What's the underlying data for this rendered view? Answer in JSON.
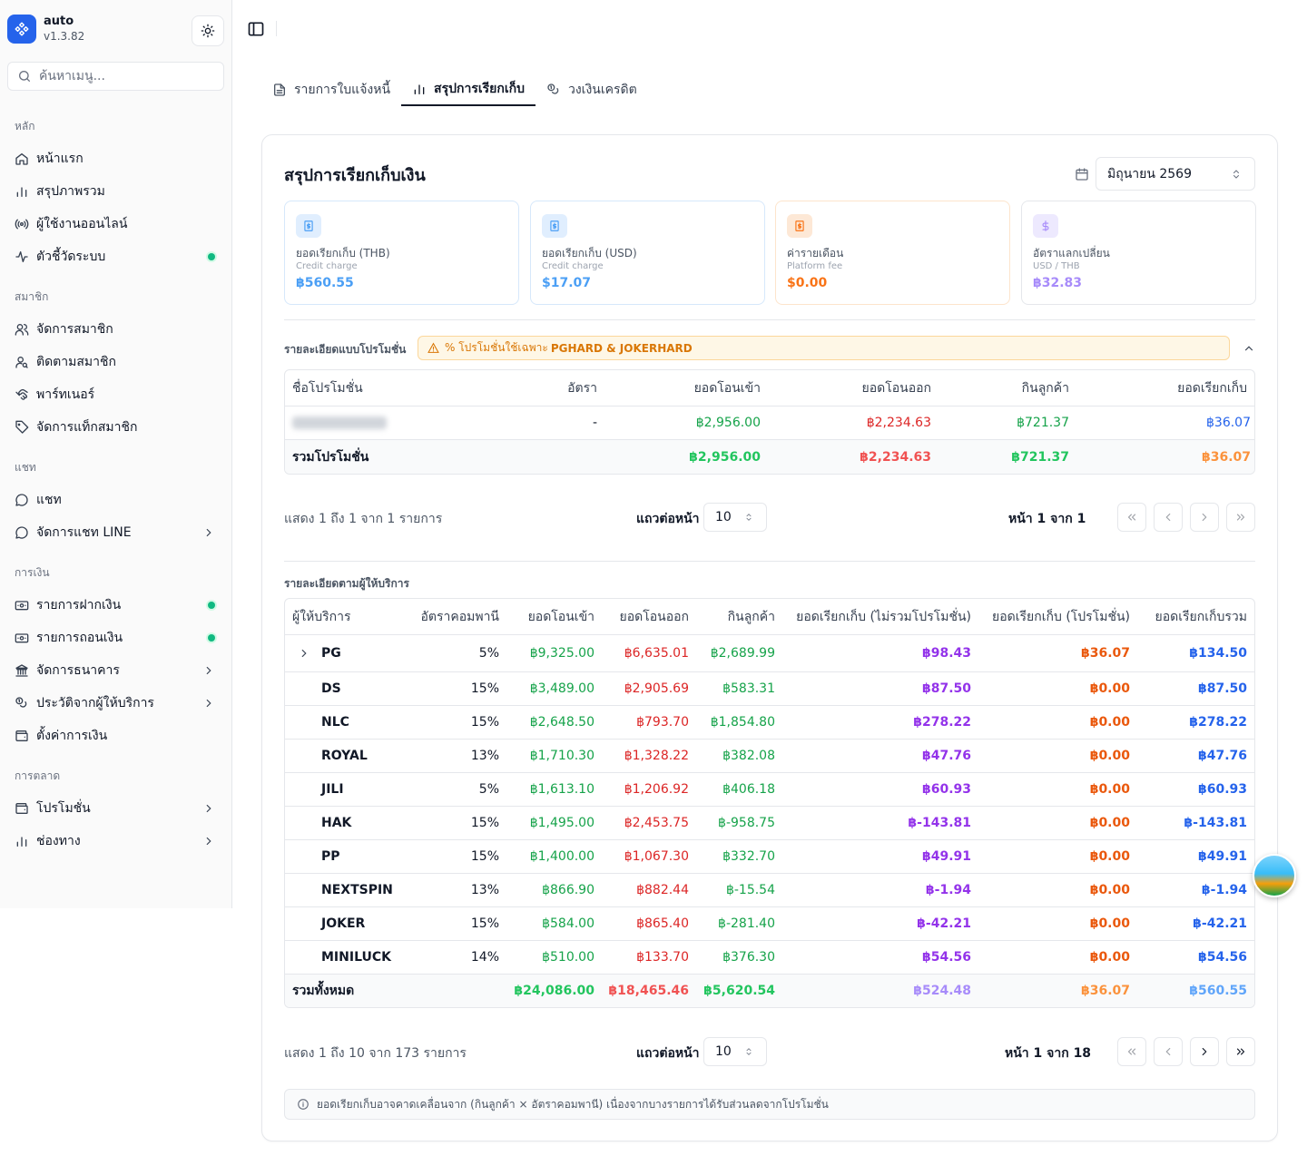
{
  "app": {
    "name": "auto",
    "version": "v1.3.82"
  },
  "search": {
    "placeholder": "ค้นหาเมนู..."
  },
  "sidebar": {
    "groups": [
      {
        "label": "หลัก",
        "items": [
          {
            "label": "หน้าแรก",
            "icon": "home-icon"
          },
          {
            "label": "สรุปภาพรวม",
            "icon": "bar-chart-icon"
          },
          {
            "label": "ผู้ใช้งานออนไลน์",
            "icon": "radio-icon"
          },
          {
            "label": "ตัวชี้วัดระบบ",
            "icon": "activity-icon",
            "dot": true
          }
        ]
      },
      {
        "label": "สมาชิก",
        "items": [
          {
            "label": "จัดการสมาชิก",
            "icon": "users-icon"
          },
          {
            "label": "ติดตามสมาชิก",
            "icon": "user-search-icon"
          },
          {
            "label": "พาร์ทเนอร์",
            "icon": "handshake-icon"
          },
          {
            "label": "จัดการแท็กสมาชิก",
            "icon": "tag-icon"
          }
        ]
      },
      {
        "label": "แชท",
        "items": [
          {
            "label": "แชท",
            "icon": "chat-icon"
          },
          {
            "label": "จัดการแชท LINE",
            "icon": "chat-icon",
            "chevron": true
          }
        ]
      },
      {
        "label": "การเงิน",
        "items": [
          {
            "label": "รายการฝากเงิน",
            "icon": "deposit-icon",
            "dot": true
          },
          {
            "label": "รายการถอนเงิน",
            "icon": "withdraw-icon",
            "dot": true
          },
          {
            "label": "จัดการธนาคาร",
            "icon": "bank-icon",
            "chevron": true
          },
          {
            "label": "ประวัติจากผู้ให้บริการ",
            "icon": "coins-icon",
            "chevron": true
          },
          {
            "label": "ตั้งค่าการเงิน",
            "icon": "wallet-icon"
          }
        ]
      },
      {
        "label": "การตลาด",
        "items": [
          {
            "label": "โปรโมชั่น",
            "icon": "wallet-icon",
            "chevron": true
          },
          {
            "label": "ช่องทาง",
            "icon": "bar-chart-icon",
            "chevron": true
          }
        ]
      }
    ]
  },
  "tabs": [
    {
      "label": "รายการใบแจ้งหนี้",
      "icon": "document-icon",
      "active": false
    },
    {
      "label": "สรุปการเรียกเก็บ",
      "icon": "bar-chart-icon",
      "active": true
    },
    {
      "label": "วงเงินเครดิต",
      "icon": "coins-icon",
      "active": false
    }
  ],
  "summary": {
    "title": "สรุปการเรียกเก็บเงิน",
    "month": "มิถุนายน 2569",
    "stats": [
      {
        "label": "ยอดเรียกเก็บ (THB)",
        "sub": "Credit charge",
        "value": "฿560.55",
        "color": "#4b9ff5",
        "border": "#d6e8fb",
        "icon_bg": "#e0eefe",
        "icon": "receipt-icon"
      },
      {
        "label": "ยอดเรียกเก็บ (USD)",
        "sub": "Credit charge",
        "value": "$17.07",
        "color": "#4b9ff5",
        "border": "#d6e8fb",
        "icon_bg": "#e0eefe",
        "icon": "receipt-icon"
      },
      {
        "label": "ค่ารายเดือน",
        "sub": "Platform fee",
        "value": "$0.00",
        "color": "#f97316",
        "border": "#fde4cc",
        "icon_bg": "#fde8d6",
        "icon": "receipt-icon"
      },
      {
        "label": "อัตราแลกเปลี่ยน",
        "sub": "USD / THB",
        "value": "฿32.83",
        "color": "#a78bfa",
        "border": "#e5e7eb",
        "icon_bg": "#ede9fe",
        "icon": "dollar-icon"
      }
    ]
  },
  "promo": {
    "label": "รายละเอียดแบบโปรโมชั่น",
    "warning_prefix": "% โปรโมชั่นใช้เฉพาะ ",
    "warning_bold": "PGHARD & JOKERHARD",
    "columns": [
      "ชื่อโปรโมชั่น",
      "อัตรา",
      "ยอดโอนเข้า",
      "ยอดโอนออก",
      "กินลูกค้า",
      "ยอดเรียกเก็บ"
    ],
    "rows": [
      {
        "name": "",
        "rate": "-",
        "in": "฿2,956.00",
        "out": "฿2,234.63",
        "win": "฿721.37",
        "charge": "฿36.07"
      }
    ],
    "total": {
      "label": "รวมโปรโมชั่น",
      "in": "฿2,956.00",
      "out": "฿2,234.63",
      "win": "฿721.37",
      "charge": "฿36.07"
    },
    "pager": {
      "showing": "แสดง 1 ถึง 1 จาก 1 รายการ",
      "rows_label": "แถวต่อหน้า",
      "rows_value": "10",
      "page": "หน้า 1 จาก 1"
    }
  },
  "providers": {
    "label": "รายละเอียดตามผู้ให้บริการ",
    "columns": [
      "ผู้ให้บริการ",
      "อัตราคอมพานี",
      "ยอดโอนเข้า",
      "ยอดโอนออก",
      "กินลูกค้า",
      "ยอดเรียกเก็บ (ไม่รวมโปรโมชั่น)",
      "ยอดเรียกเก็บ (โปรโมชั่น)",
      "ยอดเรียกเก็บรวม"
    ],
    "rows": [
      {
        "name": "PG",
        "rate": "5%",
        "in": "฿9,325.00",
        "out": "฿6,635.01",
        "win": "฿2,689.99",
        "charge": "฿98.43",
        "promo": "฿36.07",
        "total": "฿134.50",
        "expandable": true
      },
      {
        "name": "DS",
        "rate": "15%",
        "in": "฿3,489.00",
        "out": "฿2,905.69",
        "win": "฿583.31",
        "charge": "฿87.50",
        "promo": "฿0.00",
        "total": "฿87.50"
      },
      {
        "name": "NLC",
        "rate": "15%",
        "in": "฿2,648.50",
        "out": "฿793.70",
        "win": "฿1,854.80",
        "charge": "฿278.22",
        "promo": "฿0.00",
        "total": "฿278.22"
      },
      {
        "name": "ROYAL",
        "rate": "13%",
        "in": "฿1,710.30",
        "out": "฿1,328.22",
        "win": "฿382.08",
        "charge": "฿47.76",
        "promo": "฿0.00",
        "total": "฿47.76"
      },
      {
        "name": "JILI",
        "rate": "5%",
        "in": "฿1,613.10",
        "out": "฿1,206.92",
        "win": "฿406.18",
        "charge": "฿60.93",
        "promo": "฿0.00",
        "total": "฿60.93"
      },
      {
        "name": "HAK",
        "rate": "15%",
        "in": "฿1,495.00",
        "out": "฿2,453.75",
        "win": "฿-958.75",
        "charge": "฿-143.81",
        "promo": "฿0.00",
        "total": "฿-143.81"
      },
      {
        "name": "PP",
        "rate": "15%",
        "in": "฿1,400.00",
        "out": "฿1,067.30",
        "win": "฿332.70",
        "charge": "฿49.91",
        "promo": "฿0.00",
        "total": "฿49.91"
      },
      {
        "name": "NEXTSPIN",
        "rate": "13%",
        "in": "฿866.90",
        "out": "฿882.44",
        "win": "฿-15.54",
        "charge": "฿-1.94",
        "promo": "฿0.00",
        "total": "฿-1.94"
      },
      {
        "name": "JOKER",
        "rate": "15%",
        "in": "฿584.00",
        "out": "฿865.40",
        "win": "฿-281.40",
        "charge": "฿-42.21",
        "promo": "฿0.00",
        "total": "฿-42.21"
      },
      {
        "name": "MINILUCK",
        "rate": "14%",
        "in": "฿510.00",
        "out": "฿133.70",
        "win": "฿376.30",
        "charge": "฿54.56",
        "promo": "฿0.00",
        "total": "฿54.56"
      }
    ],
    "total": {
      "label": "รวมทั้งหมด",
      "in": "฿24,086.00",
      "out": "฿18,465.46",
      "win": "฿5,620.54",
      "charge": "฿524.48",
      "promo": "฿36.07",
      "total": "฿560.55"
    },
    "pager": {
      "showing": "แสดง 1 ถึง 10 จาก 173 รายการ",
      "rows_label": "แถวต่อหน้า",
      "rows_value": "10",
      "page": "หน้า 1 จาก 18"
    }
  },
  "note": "ยอดเรียกเก็บอาจคาดเคลื่อนจาก (กินลูกค้า × อัตราคอมพานี) เนื่องจากบางรายการได้รับส่วนลดจากโปรโมชั่น"
}
